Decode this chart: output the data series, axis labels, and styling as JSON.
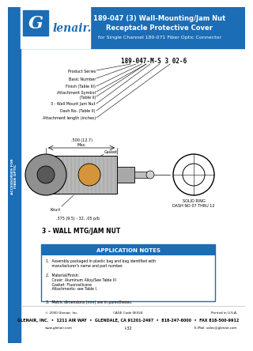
{
  "title_line1": "189-047 (3) Wall-Mounting/Jam Nut",
  "title_line2": "Receptacle Protective Cover",
  "title_line3": "for Single Channel 180-071 Fiber Optic Connector",
  "header_bg": "#1b6db5",
  "header_text_color": "#ffffff",
  "sidebar_bg": "#1b6db5",
  "part_number_label": "189-047-M-S 3 02-6",
  "part_labels": [
    "Product Series",
    "Basic Number",
    "Finish (Table III)",
    "Attachment Symbol",
    "(Table II)",
    "3 - Wall Mount Jam Nut",
    "Dash No. (Table II)",
    "Attachment length (inches)"
  ],
  "app_notes_title": "APPLICATION NOTES",
  "app_notes_bg": "#1b6db5",
  "app_notes": [
    "1.  Assembly packaged in plastic bag and bag identified with\n     manufacturer's name and part number.",
    "2.  Material/Finish:\n     Cover: Aluminum Alloy/See Table III\n     Gasket: Fluorosilicone\n     Attachments: see Table I.",
    "3.  Metric dimensions (mm) are in parentheses."
  ],
  "footer_copy": "© 2000 Glenair, Inc.",
  "footer_cage": "CAGE Code 06324",
  "footer_printed": "Printed in U.S.A.",
  "footer_address": "GLENAIR, INC.  •  1211 AIR WAY  •  GLENDALE, CA 91201-2497  •  818-247-6000  •  FAX 818-500-9912",
  "footer_web": "www.glenair.com",
  "footer_page": "I-32",
  "footer_email": "E-Mail: sales@glenair.com",
  "diagram_label": "3 - WALL MTG/JAM NUT",
  "solid_ring_label": "SOLID RING\nDASH NO 07 THRU 12",
  "gasket_label": "Gasket",
  "knurl_label": "Knurl",
  "dim_label": ".500 (12.7)\nMax.",
  "thread_label": ".375 (9.5) - 32, .05 p/b"
}
